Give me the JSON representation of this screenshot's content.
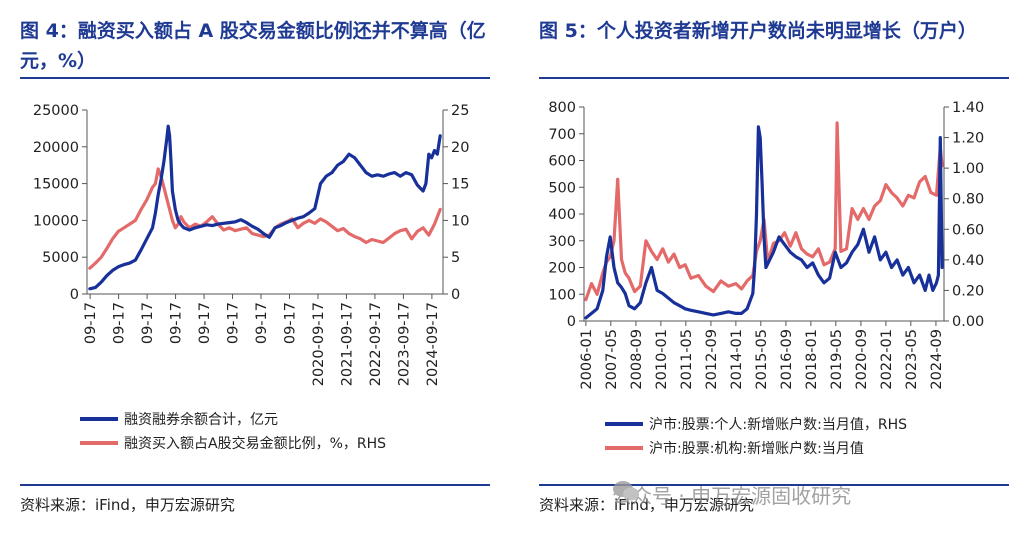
{
  "left_panel": {
    "title": "图 4：融资买入额占 A 股交易金额比例还并不算高（亿元，%）",
    "source": "资料来源：iFind，申万宏源研究"
  },
  "right_panel": {
    "title": "图 5：个人投资者新增开户数尚未明显增长（万户）",
    "source": "资料来源：iFind，申万宏源研究"
  },
  "watermark": "公众号 · 申万宏源固收研究",
  "colors": {
    "navy": "#17309a",
    "red": "#e46a6a",
    "title": "#1f3a93"
  },
  "chart_data": [
    {
      "type": "line",
      "title": "图 4：融资买入额占 A 股交易金额比例还并不算高（亿元，%）",
      "x_tick_labels": [
        "09-17",
        "09-17",
        "09-17",
        "09-17",
        "09-17",
        "09-17",
        "09-17",
        "09-17",
        "2020-09-17",
        "2021-09-17",
        "2022-09-17",
        "2023-09-17",
        "2024-09-17"
      ],
      "x_ticks_year": [
        2012.71,
        2013.71,
        2014.71,
        2015.71,
        2016.71,
        2017.71,
        2018.71,
        2019.71,
        2020.71,
        2021.71,
        2022.71,
        2023.71,
        2024.71
      ],
      "x_range": [
        2012.6,
        2025.1
      ],
      "ylim_left": [
        0,
        25000
      ],
      "yticks_left": [
        0,
        5000,
        10000,
        15000,
        20000,
        25000
      ],
      "ylim_right": [
        0,
        25
      ],
      "yticks_right": [
        0,
        5,
        10,
        15,
        20,
        25
      ],
      "legend": "bottom",
      "series": [
        {
          "name": "融资融券余额合计，亿元",
          "axis": "left",
          "x": [
            2012.7,
            2012.9,
            2013.1,
            2013.3,
            2013.5,
            2013.7,
            2013.9,
            2014.1,
            2014.3,
            2014.5,
            2014.7,
            2014.9,
            2015.0,
            2015.1,
            2015.2,
            2015.3,
            2015.4,
            2015.45,
            2015.5,
            2015.55,
            2015.6,
            2015.7,
            2015.8,
            2015.9,
            2016.0,
            2016.2,
            2016.4,
            2016.6,
            2016.8,
            2017.0,
            2017.2,
            2017.4,
            2017.6,
            2017.8,
            2018.0,
            2018.2,
            2018.4,
            2018.6,
            2018.8,
            2019.0,
            2019.2,
            2019.4,
            2019.6,
            2019.8,
            2020.0,
            2020.2,
            2020.4,
            2020.6,
            2020.8,
            2021.0,
            2021.2,
            2021.4,
            2021.6,
            2021.8,
            2022.0,
            2022.2,
            2022.4,
            2022.6,
            2022.8,
            2023.0,
            2023.2,
            2023.4,
            2023.6,
            2023.8,
            2024.0,
            2024.2,
            2024.4,
            2024.5,
            2024.6,
            2024.7,
            2024.8,
            2024.9,
            2025.0
          ],
          "y": [
            700,
            900,
            1600,
            2500,
            3200,
            3700,
            4000,
            4200,
            4600,
            6000,
            7500,
            9000,
            11000,
            13500,
            15500,
            18000,
            21000,
            22800,
            21500,
            18000,
            14000,
            11500,
            10000,
            9400,
            9000,
            8700,
            9000,
            9200,
            9400,
            9300,
            9500,
            9600,
            9700,
            9800,
            10100,
            9700,
            9200,
            8800,
            8200,
            7700,
            9000,
            9300,
            9700,
            10000,
            10300,
            10500,
            11000,
            11600,
            15000,
            16000,
            16500,
            17500,
            18000,
            19000,
            18500,
            17500,
            16500,
            16000,
            16200,
            16000,
            16300,
            16500,
            16000,
            16500,
            16200,
            14800,
            14000,
            15000,
            19000,
            18500,
            19500,
            19000,
            21500
          ]
        },
        {
          "name": "融资买入额占A股交易金额比例，%，RHS",
          "axis": "right",
          "x": [
            2012.7,
            2012.9,
            2013.1,
            2013.3,
            2013.5,
            2013.7,
            2013.9,
            2014.1,
            2014.3,
            2014.5,
            2014.7,
            2014.9,
            2015.0,
            2015.1,
            2015.2,
            2015.3,
            2015.4,
            2015.5,
            2015.6,
            2015.7,
            2015.8,
            2015.9,
            2016.0,
            2016.2,
            2016.4,
            2016.6,
            2016.8,
            2017.0,
            2017.2,
            2017.4,
            2017.6,
            2017.8,
            2018.0,
            2018.2,
            2018.4,
            2018.6,
            2018.8,
            2019.0,
            2019.2,
            2019.4,
            2019.6,
            2019.8,
            2020.0,
            2020.2,
            2020.4,
            2020.6,
            2020.8,
            2021.0,
            2021.2,
            2021.4,
            2021.6,
            2021.8,
            2022.0,
            2022.2,
            2022.4,
            2022.6,
            2022.8,
            2023.0,
            2023.2,
            2023.4,
            2023.6,
            2023.8,
            2024.0,
            2024.2,
            2024.4,
            2024.6,
            2024.8,
            2025.0
          ],
          "y": [
            3.5,
            4.2,
            5.0,
            6.2,
            7.5,
            8.5,
            9.0,
            9.5,
            10.0,
            11.5,
            12.8,
            14.5,
            15.0,
            17.0,
            16.0,
            14.5,
            13.0,
            11.5,
            10.0,
            9.0,
            9.5,
            10.5,
            9.8,
            9.0,
            9.5,
            9.2,
            9.8,
            10.5,
            9.5,
            8.7,
            9.0,
            8.6,
            8.8,
            9.0,
            8.2,
            8.0,
            7.8,
            8.0,
            9.0,
            9.5,
            9.8,
            10.2,
            9.0,
            9.6,
            10.0,
            9.6,
            10.2,
            9.8,
            9.2,
            8.6,
            8.9,
            8.2,
            7.8,
            7.5,
            7.0,
            7.4,
            7.2,
            7.0,
            7.6,
            8.2,
            8.6,
            8.8,
            7.5,
            8.5,
            9.0,
            8.0,
            9.5,
            11.5
          ]
        }
      ]
    },
    {
      "type": "line",
      "title": "图 5：个人投资者新增开户数尚未明显增长（万户）",
      "x_tick_labels": [
        "2006-01",
        "2007-05",
        "2008-09",
        "2010-01",
        "2011-05",
        "2012-09",
        "2014-01",
        "2015-05",
        "2016-09",
        "2018-01",
        "2019-05",
        "2020-09",
        "2022-01",
        "2023-05",
        "2024-09"
      ],
      "x_ticks_year": [
        2006.0,
        2007.33,
        2008.67,
        2010.0,
        2011.33,
        2012.67,
        2014.0,
        2015.33,
        2016.67,
        2018.0,
        2019.33,
        2020.67,
        2022.0,
        2023.33,
        2024.67
      ],
      "x_range": [
        2005.9,
        2025.1
      ],
      "ylim_left": [
        0,
        800
      ],
      "yticks_left": [
        0,
        100,
        200,
        300,
        400,
        500,
        600,
        700,
        800
      ],
      "ylim_right": [
        0,
        1.4
      ],
      "yticks_right": [
        0.0,
        0.2,
        0.4,
        0.6,
        0.8,
        1.0,
        1.2,
        1.4
      ],
      "legend": "bottom",
      "series": [
        {
          "name": "沪市:股票:个人:新增账户数:当月值，RHS",
          "axis": "right",
          "x": [
            2006.0,
            2006.3,
            2006.6,
            2006.9,
            2007.1,
            2007.3,
            2007.5,
            2007.7,
            2007.9,
            2008.1,
            2008.3,
            2008.6,
            2008.9,
            2009.2,
            2009.5,
            2009.8,
            2010.1,
            2010.4,
            2010.7,
            2011.0,
            2011.3,
            2011.6,
            2012.0,
            2012.4,
            2012.8,
            2013.2,
            2013.6,
            2014.0,
            2014.3,
            2014.6,
            2014.9,
            2015.0,
            2015.1,
            2015.2,
            2015.3,
            2015.4,
            2015.5,
            2015.6,
            2015.8,
            2016.0,
            2016.3,
            2016.6,
            2016.9,
            2017.2,
            2017.5,
            2017.8,
            2018.1,
            2018.4,
            2018.7,
            2019.0,
            2019.3,
            2019.6,
            2019.9,
            2020.2,
            2020.5,
            2020.8,
            2021.1,
            2021.4,
            2021.7,
            2022.0,
            2022.3,
            2022.6,
            2022.9,
            2023.2,
            2023.5,
            2023.8,
            2024.1,
            2024.3,
            2024.5,
            2024.7,
            2024.8,
            2024.9,
            2025.0
          ],
          "y": [
            0.02,
            0.05,
            0.08,
            0.2,
            0.42,
            0.55,
            0.35,
            0.25,
            0.22,
            0.18,
            0.1,
            0.08,
            0.12,
            0.25,
            0.35,
            0.2,
            0.18,
            0.15,
            0.12,
            0.1,
            0.08,
            0.07,
            0.06,
            0.05,
            0.04,
            0.05,
            0.06,
            0.05,
            0.05,
            0.08,
            0.18,
            0.35,
            0.7,
            1.27,
            1.2,
            0.9,
            0.55,
            0.35,
            0.4,
            0.45,
            0.55,
            0.5,
            0.45,
            0.42,
            0.4,
            0.35,
            0.38,
            0.3,
            0.25,
            0.28,
            0.45,
            0.35,
            0.38,
            0.45,
            0.5,
            0.6,
            0.45,
            0.55,
            0.4,
            0.45,
            0.35,
            0.4,
            0.3,
            0.35,
            0.25,
            0.3,
            0.2,
            0.3,
            0.2,
            0.25,
            0.3,
            1.2,
            0.35
          ]
        },
        {
          "name": "沪市:股票:机构:新增账户数:当月值",
          "axis": "left",
          "x": [
            2006.0,
            2006.3,
            2006.6,
            2006.9,
            2007.1,
            2007.3,
            2007.5,
            2007.7,
            2007.9,
            2008.1,
            2008.3,
            2008.6,
            2008.9,
            2009.2,
            2009.5,
            2009.8,
            2010.1,
            2010.4,
            2010.7,
            2011.0,
            2011.3,
            2011.6,
            2012.0,
            2012.4,
            2012.8,
            2013.2,
            2013.6,
            2014.0,
            2014.3,
            2014.6,
            2014.9,
            2015.1,
            2015.3,
            2015.5,
            2015.7,
            2016.0,
            2016.3,
            2016.6,
            2016.9,
            2017.2,
            2017.5,
            2017.8,
            2018.1,
            2018.4,
            2018.7,
            2019.0,
            2019.3,
            2019.4,
            2019.6,
            2019.9,
            2020.2,
            2020.5,
            2020.8,
            2021.1,
            2021.4,
            2021.7,
            2022.0,
            2022.3,
            2022.6,
            2022.9,
            2023.2,
            2023.5,
            2023.8,
            2024.1,
            2024.4,
            2024.7,
            2024.9,
            2025.0
          ],
          "y": [
            80,
            140,
            100,
            180,
            220,
            240,
            300,
            530,
            230,
            180,
            160,
            110,
            130,
            300,
            260,
            230,
            270,
            220,
            250,
            200,
            210,
            160,
            170,
            130,
            110,
            150,
            130,
            140,
            120,
            150,
            170,
            260,
            300,
            380,
            220,
            290,
            300,
            330,
            280,
            330,
            270,
            250,
            240,
            270,
            210,
            220,
            270,
            740,
            260,
            270,
            420,
            380,
            420,
            380,
            430,
            450,
            510,
            480,
            460,
            430,
            470,
            460,
            520,
            540,
            480,
            470,
            650,
            580
          ]
        }
      ]
    }
  ]
}
